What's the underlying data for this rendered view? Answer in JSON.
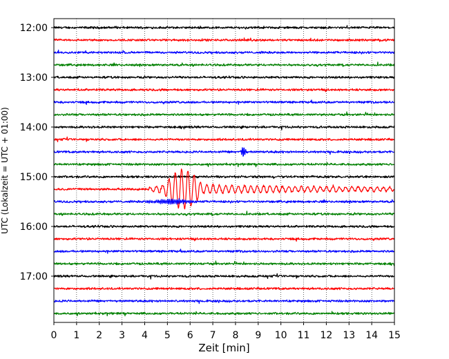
{
  "chart_data": {
    "type": "line",
    "title": "",
    "xlabel": "Zeit  [min]",
    "ylabel": "UTC (Lokalzeit = UTC + 01:00)",
    "xlim": [
      0,
      15
    ],
    "x_ticks": [
      "0",
      "1",
      "2",
      "3",
      "4",
      "5",
      "6",
      "7",
      "8",
      "9",
      "10",
      "11",
      "12",
      "13",
      "14",
      "15"
    ],
    "y_ticks": [
      "12:00",
      "13:00",
      "14:00",
      "15:00",
      "16:00",
      "17:00"
    ],
    "trace_interval_minutes": 15,
    "first_trace": "12:00",
    "trace_count": 24,
    "trace_colors": [
      "#000000",
      "#ff0000",
      "#0000ff",
      "#008000"
    ],
    "grid": "vertical dotted lines at each minute",
    "events": [
      {
        "trace_time": "14:30",
        "start_min": 8.2,
        "end_min": 8.5,
        "peak_amplitude": 0.5,
        "color": "#0000ff"
      },
      {
        "trace_time": "15:15",
        "start_min": 4.0,
        "peak_start_min": 4.8,
        "peak_end_min": 6.6,
        "end_min": 15.0,
        "peak_amplitude": 1.6,
        "color": "#ff0000"
      },
      {
        "trace_time": "15:30",
        "start_min": 3.8,
        "end_min": 6.6,
        "peak_amplitude": 0.2,
        "color": "#0000ff"
      }
    ]
  }
}
